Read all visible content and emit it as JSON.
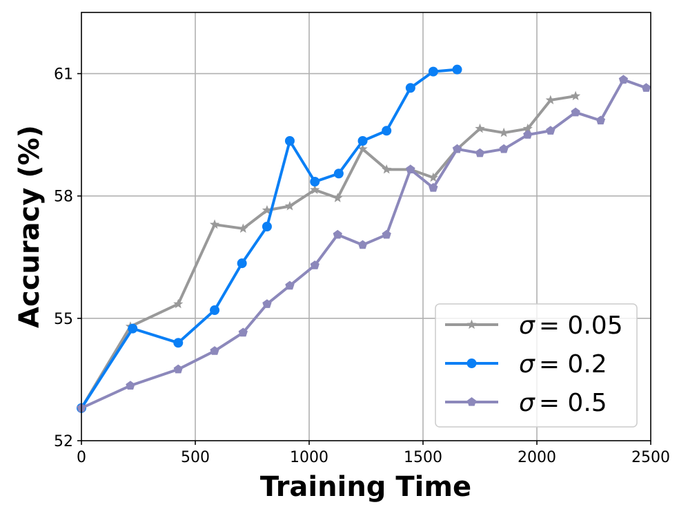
{
  "chart_data": {
    "type": "line",
    "title": "",
    "xlabel": "Training Time",
    "ylabel": "Accuracy (%)",
    "xlim": [
      0,
      2500
    ],
    "ylim": [
      52,
      62.5
    ],
    "xticks": [
      0,
      500,
      1000,
      1500,
      2000,
      2500
    ],
    "xtick_labels": [
      "0",
      "500",
      "1000",
      "1500",
      "2000",
      "2500"
    ],
    "yticks": [
      52,
      55,
      58,
      61
    ],
    "ytick_labels": [
      "52",
      "55",
      "58",
      "61"
    ],
    "grid": true,
    "legend_position": "lower-right",
    "series": [
      {
        "name": "σ = 0.05",
        "label_prefix": "σ",
        "label_value": "= 0.05",
        "color": "#999999",
        "marker": "star",
        "x": [
          0,
          215,
          425,
          585,
          710,
          815,
          915,
          1025,
          1125,
          1235,
          1340,
          1445,
          1545,
          1650,
          1750,
          1855,
          1960,
          2060,
          2170
        ],
        "y": [
          52.8,
          54.8,
          55.35,
          57.3,
          57.2,
          57.65,
          57.75,
          58.15,
          57.95,
          59.15,
          58.65,
          58.65,
          58.45,
          59.15,
          59.65,
          59.55,
          59.65,
          60.35,
          60.45
        ]
      },
      {
        "name": "σ = 0.2",
        "label_prefix": "σ",
        "label_value": "= 0.2",
        "color": "#0a7ff5",
        "marker": "circle",
        "x": [
          0,
          225,
          425,
          585,
          705,
          815,
          915,
          1025,
          1130,
          1235,
          1340,
          1445,
          1545,
          1650
        ],
        "y": [
          52.8,
          54.75,
          54.4,
          55.2,
          56.35,
          57.25,
          59.35,
          58.35,
          58.55,
          59.35,
          59.6,
          60.65,
          61.05,
          61.1
        ]
      },
      {
        "name": "σ = 0.5",
        "label_prefix": "σ",
        "label_value": "= 0.5",
        "color": "#8c88bb",
        "marker": "pentagon",
        "x": [
          0,
          215,
          425,
          585,
          710,
          815,
          915,
          1025,
          1125,
          1235,
          1340,
          1445,
          1545,
          1650,
          1750,
          1855,
          1960,
          2060,
          2170,
          2280,
          2380,
          2480
        ],
        "y": [
          52.8,
          53.35,
          53.75,
          54.2,
          54.65,
          55.35,
          55.8,
          56.3,
          57.05,
          56.8,
          57.05,
          58.65,
          58.2,
          59.15,
          59.05,
          59.15,
          59.5,
          59.6,
          60.05,
          59.85,
          60.85,
          60.65
        ]
      }
    ]
  }
}
